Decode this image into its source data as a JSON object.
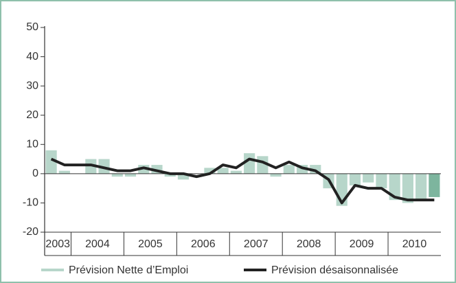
{
  "chart_data": {
    "type": "bar-line",
    "categories": [
      null,
      "2003",
      null,
      null,
      "2004",
      null,
      null,
      null,
      "2005",
      null,
      null,
      null,
      "2006",
      null,
      null,
      null,
      "2007",
      null,
      null,
      null,
      "2008",
      null,
      null,
      null,
      "2009",
      null,
      null,
      null,
      "2010",
      null
    ],
    "series": [
      {
        "name": "Prévision Nette d’Emploi",
        "type": "bar",
        "color": "#b7d6ca",
        "highlight_color": "#7db59e",
        "values": [
          8,
          1,
          0,
          5,
          5,
          -1,
          -1,
          3,
          3,
          -1,
          -2,
          0,
          2,
          2,
          1,
          7,
          6,
          -1,
          3,
          3,
          3,
          -5,
          -11,
          -4,
          -3,
          -5,
          -9,
          -10,
          -9,
          -8
        ]
      },
      {
        "name": "Prévision désaisonnalisée",
        "type": "line",
        "color": "#222222",
        "values": [
          5,
          3,
          3,
          3,
          2,
          1,
          1,
          2,
          1,
          0,
          0,
          -1,
          0,
          3,
          2,
          5,
          4,
          2,
          4,
          2,
          1,
          -2,
          -10,
          -4,
          -5,
          -5,
          -8,
          -9,
          -9,
          -9
        ]
      }
    ],
    "ylim": [
      -20,
      50
    ],
    "yticks": [
      -20,
      -10,
      0,
      10,
      20,
      30,
      40,
      50
    ]
  }
}
